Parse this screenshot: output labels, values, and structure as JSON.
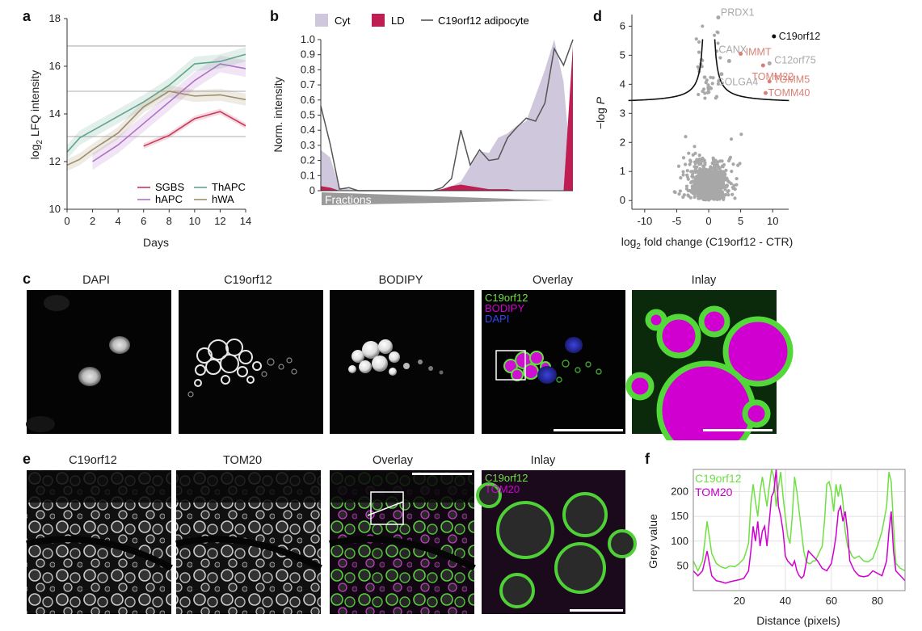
{
  "panel_labels": {
    "a": "a",
    "b": "b",
    "c": "c",
    "d": "d",
    "e": "e",
    "f": "f"
  },
  "colors": {
    "sgbs": "#c8385a",
    "hapc": "#b070c8",
    "thapc": "#5fa58a",
    "hwa": "#a08c6a",
    "cyt": "#cfc8dc",
    "ld": "#c01e52",
    "c19line": "#555555",
    "grey_points": "#a8a8a8",
    "green": "#6ee042",
    "magenta": "#d000d0",
    "highlight": "#d98076"
  },
  "chart_data": [
    {
      "type": "line",
      "panel": "a",
      "xlabel": "Days",
      "ylabel_main": "log",
      "ylabel_sub": "2",
      "ylabel_rest": " LFQ intensity",
      "xlim": [
        0,
        14
      ],
      "ylim": [
        10,
        18
      ],
      "xticks": [
        "0",
        "2",
        "4",
        "6",
        "8",
        "10",
        "12",
        "14"
      ],
      "yticks": [
        "10",
        "12",
        "14",
        "16",
        "18"
      ],
      "reference_lines": [
        13.05,
        14.95,
        16.85
      ],
      "series": [
        {
          "name": "SGBS",
          "x": [
            6,
            8,
            10,
            12,
            14
          ],
          "y": [
            12.65,
            13.1,
            13.8,
            14.1,
            13.5
          ],
          "band": 0.12
        },
        {
          "name": "hAPC",
          "x": [
            2,
            4,
            6,
            8,
            10,
            12,
            14
          ],
          "y": [
            12.0,
            12.7,
            13.6,
            14.5,
            15.4,
            16.1,
            15.9
          ],
          "band": 0.35
        },
        {
          "name": "ThAPC",
          "x": [
            0,
            1,
            2,
            4,
            6,
            8,
            10,
            12,
            14
          ],
          "y": [
            12.4,
            13.0,
            13.3,
            13.9,
            14.5,
            15.2,
            16.1,
            16.2,
            16.5
          ],
          "band": 0.3
        },
        {
          "name": "hWA",
          "x": [
            0,
            1,
            2,
            4,
            6,
            8,
            10,
            12,
            14
          ],
          "y": [
            11.85,
            12.1,
            12.5,
            13.2,
            14.3,
            14.95,
            14.75,
            14.8,
            14.6
          ],
          "band": 0.25
        }
      ]
    },
    {
      "type": "area",
      "panel": "b",
      "ylabel": "Norm. intensity",
      "xlabel": "Fractions",
      "ylim": [
        0,
        1.0
      ],
      "yticks": [
        "0",
        "0.1",
        "0.2",
        "0.3",
        "0.4",
        "0.5",
        "0.6",
        "0.7",
        "0.8",
        "0.9",
        "1.0"
      ],
      "series": [
        {
          "name": "Cyt",
          "values": [
            0.27,
            0.22,
            0.02,
            0.01,
            0.0,
            0.0,
            0.0,
            0.0,
            0.0,
            0.0,
            0.0,
            0.0,
            0.0,
            0.01,
            0.03,
            0.06,
            0.16,
            0.26,
            0.25,
            0.35,
            0.38,
            0.43,
            0.46,
            0.63,
            0.8,
            1.0,
            0.72,
            0.0
          ]
        },
        {
          "name": "LD",
          "values": [
            0.03,
            0.02,
            0.0,
            0.0,
            0.0,
            0.0,
            0.0,
            0.0,
            0.0,
            0.0,
            0.0,
            0.0,
            0.0,
            0.01,
            0.03,
            0.04,
            0.03,
            0.02,
            0.01,
            0.01,
            0.01,
            0.0,
            0.0,
            0.0,
            0.0,
            0.0,
            0.0,
            0.96
          ]
        },
        {
          "name": "C19orf12 adipocyte",
          "values": [
            0.56,
            0.31,
            0.01,
            0.02,
            0.0,
            0.0,
            0.0,
            0.0,
            0.0,
            0.0,
            0.0,
            0.0,
            0.0,
            0.02,
            0.08,
            0.4,
            0.17,
            0.27,
            0.2,
            0.21,
            0.35,
            0.42,
            0.48,
            0.46,
            0.58,
            0.94,
            0.83,
            1.0
          ]
        }
      ]
    },
    {
      "type": "scatter",
      "panel": "d",
      "xlabel_main": "log",
      "xlabel_sub": "2",
      "xlabel_rest": " fold change (C19orf12 - CTR)",
      "ylabel_pre": "−log ",
      "ylabel_italic": "P",
      "xlim": [
        -12,
        12.5
      ],
      "ylim": [
        -0.3,
        6.4
      ],
      "xticks": [
        "-10",
        "-5",
        "0",
        "5",
        "10"
      ],
      "yticks": [
        "0",
        "1",
        "2",
        "3",
        "4",
        "5",
        "6"
      ],
      "labeled_points": [
        {
          "name": "C19orf12",
          "x": 10.2,
          "y": 5.65,
          "color": "black"
        },
        {
          "name": "PRDX1",
          "x": 1.5,
          "y": 6.3,
          "color": "grey"
        },
        {
          "name": "CANX",
          "x": 3.2,
          "y": 4.8,
          "color": "grey"
        },
        {
          "name": "IMMT",
          "x": 5.0,
          "y": 5.05,
          "color": "highlight"
        },
        {
          "name": "C12orf75",
          "x": 9.5,
          "y": 4.72,
          "color": "grey"
        },
        {
          "name": "TOMM22",
          "x": 8.5,
          "y": 4.65,
          "color": "highlight"
        },
        {
          "name": "GOLGA4",
          "x": 2.0,
          "y": 4.35,
          "color": "grey"
        },
        {
          "name": "TOMM5",
          "x": 9.5,
          "y": 4.1,
          "color": "highlight"
        },
        {
          "name": "TOMM40",
          "x": 8.9,
          "y": 3.7,
          "color": "highlight"
        }
      ]
    },
    {
      "type": "line",
      "panel": "f",
      "xlabel": "Distance (pixels)",
      "ylabel": "Grey value",
      "xlim": [
        0,
        92
      ],
      "ylim": [
        0,
        245
      ],
      "xticks": [
        "20",
        "40",
        "60",
        "80"
      ],
      "yticks": [
        "50",
        "100",
        "150",
        "200"
      ],
      "series": [
        {
          "name": "C19orf12",
          "x": [
            0,
            2,
            4,
            6,
            8,
            10,
            12,
            14,
            16,
            18,
            20,
            22,
            24,
            25,
            26,
            27,
            28,
            29,
            30,
            31,
            32,
            33,
            34,
            35,
            36,
            37,
            38,
            39,
            40,
            41,
            42,
            43,
            44,
            45,
            46,
            47,
            48,
            49,
            50,
            51,
            52,
            53,
            54,
            55,
            56,
            57,
            58,
            59,
            60,
            61,
            62,
            63,
            64,
            65,
            66,
            67,
            68,
            69,
            70,
            72,
            74,
            76,
            78,
            80,
            82,
            84,
            85,
            86,
            87,
            88,
            90,
            92
          ],
          "y": [
            60,
            40,
            60,
            140,
            75,
            55,
            48,
            45,
            50,
            48,
            55,
            65,
            95,
            175,
            215,
            180,
            150,
            200,
            230,
            200,
            170,
            210,
            245,
            230,
            170,
            210,
            240,
            190,
            150,
            110,
            95,
            150,
            230,
            200,
            160,
            120,
            80,
            60,
            55,
            55,
            60,
            60,
            70,
            80,
            90,
            140,
            215,
            220,
            200,
            160,
            215,
            190,
            215,
            180,
            120,
            90,
            80,
            70,
            65,
            70,
            60,
            58,
            65,
            90,
            120,
            170,
            240,
            220,
            130,
            55,
            45,
            40
          ]
        },
        {
          "name": "TOMM20",
          "x": [
            0,
            2,
            4,
            5,
            6,
            7,
            8,
            10,
            12,
            14,
            16,
            18,
            20,
            22,
            24,
            25,
            26,
            27,
            28,
            29,
            30,
            31,
            32,
            33,
            34,
            35,
            36,
            37,
            38,
            39,
            40,
            41,
            42,
            43,
            44,
            45,
            46,
            47,
            48,
            49,
            50,
            52,
            54,
            56,
            58,
            60,
            61,
            62,
            63,
            64,
            65,
            66,
            67,
            68,
            70,
            72,
            74,
            76,
            78,
            80,
            82,
            84,
            85,
            86,
            87,
            88,
            90,
            92
          ],
          "y": [
            40,
            30,
            40,
            60,
            80,
            55,
            30,
            20,
            18,
            15,
            18,
            20,
            22,
            25,
            40,
            80,
            130,
            100,
            140,
            90,
            120,
            130,
            90,
            140,
            190,
            200,
            245,
            170,
            150,
            120,
            70,
            60,
            55,
            50,
            60,
            40,
            30,
            25,
            30,
            55,
            80,
            70,
            60,
            45,
            40,
            55,
            80,
            110,
            160,
            170,
            140,
            160,
            120,
            60,
            40,
            30,
            28,
            30,
            40,
            35,
            30,
            60,
            120,
            160,
            80,
            40,
            30,
            20
          ]
        }
      ]
    }
  ],
  "legend_a": {
    "sgbs": "SGBS",
    "hapc": "hAPC",
    "thapc": "ThAPC",
    "hwa": "hWA"
  },
  "legend_b": {
    "cyt": "Cyt",
    "ld": "LD",
    "c19": "C19orf12 adipocyte"
  },
  "panel_c": {
    "titles": [
      "DAPI",
      "C19orf12",
      "BODIPY",
      "Overlay",
      "Inlay"
    ],
    "overlay_legend": [
      "C19orf12",
      "BODIPY",
      "DAPI"
    ]
  },
  "panel_e": {
    "titles": [
      "C19orf12",
      "TOM20",
      "Overlay",
      "Inlay"
    ],
    "inlay_legend": [
      "C19orf12",
      "TOM20"
    ]
  },
  "legend_f": {
    "c19": "C19orf12",
    "tom20": "TOM20"
  }
}
